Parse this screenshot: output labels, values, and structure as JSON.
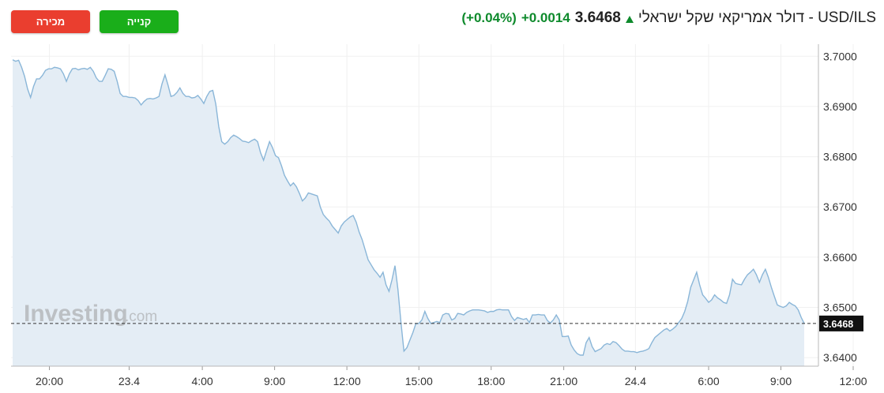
{
  "header": {
    "title": "USD/ILS - דולר אמריקאי שקל ישראלי",
    "price": "3.6468",
    "change": "+0.0014",
    "change_pct": "(+0.04%)",
    "direction_icon": "arrow-up-icon",
    "up_color": "#0e8a2c"
  },
  "buttons": {
    "buy_label": "קנייה",
    "sell_label": "מכירה",
    "buy_color": "#1aae1a",
    "sell_color": "#ea3e2f"
  },
  "watermark": {
    "text": "Investing",
    "suffix": ".com"
  },
  "chart_data": {
    "type": "area",
    "line_color": "#8ab6d8",
    "fill_color": "#e4edf5",
    "ylim": [
      3.6383,
      3.7024
    ],
    "y_ticks": [
      "3.7000",
      "3.6900",
      "3.6800",
      "3.6700",
      "3.6600",
      "3.6500",
      "3.6400"
    ],
    "y_tick_values": [
      3.7,
      3.69,
      3.68,
      3.67,
      3.66,
      3.65,
      3.64
    ],
    "x_ticks": [
      "20:00",
      "23.4",
      "4:00",
      "9:00",
      "12:00",
      "15:00",
      "18:00",
      "21:00",
      "24.4",
      "6:00",
      "9:00",
      "12:00"
    ],
    "x_tick_index": [
      12.3,
      39,
      63.5,
      87.7,
      111.9,
      136,
      160.2,
      184.5,
      208.5,
      233,
      257.2,
      281.4
    ],
    "current_value": 3.6468,
    "current_label": "3.6468",
    "grid": true,
    "values": [
      3.6993,
      3.699,
      3.6992,
      3.6978,
      3.696,
      3.6935,
      3.6918,
      3.694,
      3.6955,
      3.6955,
      3.6962,
      3.6972,
      3.6975,
      3.6975,
      3.6978,
      3.6977,
      3.6975,
      3.6965,
      3.695,
      3.6965,
      3.6975,
      3.6976,
      3.6973,
      3.6975,
      3.6976,
      3.6974,
      3.6978,
      3.697,
      3.6957,
      3.695,
      3.695,
      3.6962,
      3.6975,
      3.6974,
      3.697,
      3.695,
      3.6926,
      3.692,
      3.692,
      3.6918,
      3.6918,
      3.6917,
      3.6912,
      3.6903,
      3.691,
      3.6915,
      3.6916,
      3.6915,
      3.6917,
      3.692,
      3.6945,
      3.6963,
      3.6943,
      3.692,
      3.6922,
      3.6928,
      3.6937,
      3.6926,
      3.692,
      3.692,
      3.6917,
      3.6918,
      3.6922,
      3.6915,
      3.6906,
      3.692,
      3.693,
      3.6932,
      3.6905,
      3.686,
      3.683,
      3.6825,
      3.683,
      3.6838,
      3.6843,
      3.684,
      3.6836,
      3.6831,
      3.683,
      3.6828,
      3.6832,
      3.6835,
      3.683,
      3.6808,
      3.6793,
      3.6812,
      3.683,
      3.6818,
      3.6802,
      3.6798,
      3.6782,
      3.6763,
      3.6752,
      3.6742,
      3.6748,
      3.674,
      3.6727,
      3.6712,
      3.6718,
      3.6728,
      3.6726,
      3.6724,
      3.6722,
      3.67,
      3.6685,
      3.6678,
      3.6672,
      3.6662,
      3.6655,
      3.6648,
      3.6662,
      3.667,
      3.6675,
      3.668,
      3.6683,
      3.667,
      3.665,
      3.6635,
      3.6615,
      3.6595,
      3.6585,
      3.6575,
      3.6568,
      3.656,
      3.657,
      3.6545,
      3.6532,
      3.6555,
      3.6583,
      3.6535,
      3.647,
      3.6413,
      3.642,
      3.6435,
      3.645,
      3.6468,
      3.6468,
      3.6475,
      3.6492,
      3.6478,
      3.6468,
      3.647,
      3.6472,
      3.647,
      3.6485,
      3.6488,
      3.6487,
      3.6475,
      3.6478,
      3.6488,
      3.6487,
      3.6485,
      3.649,
      3.6493,
      3.6495,
      3.6495,
      3.6495,
      3.6494,
      3.6493,
      3.649,
      3.6492,
      3.6492,
      3.6495,
      3.6496,
      3.6495,
      3.6495,
      3.6495,
      3.6482,
      3.6474,
      3.648,
      3.6478,
      3.6476,
      3.6478,
      3.647,
      3.6485,
      3.6485,
      3.6486,
      3.6485,
      3.6485,
      3.6474,
      3.6469,
      3.6475,
      3.6485,
      3.6475,
      3.6442,
      3.6442,
      3.6443,
      3.6425,
      3.6415,
      3.6408,
      3.6405,
      3.6405,
      3.643,
      3.644,
      3.6422,
      3.6412,
      3.6415,
      3.6418,
      3.6425,
      3.6428,
      3.6426,
      3.6432,
      3.643,
      3.6424,
      3.6417,
      3.6413,
      3.6413,
      3.6412,
      3.6412,
      3.641,
      3.6412,
      3.6413,
      3.6415,
      3.6418,
      3.643,
      3.644,
      3.6445,
      3.645,
      3.6455,
      3.6458,
      3.6453,
      3.6457,
      3.6462,
      3.647,
      3.6478,
      3.6492,
      3.6512,
      3.654,
      3.6555,
      3.657,
      3.6545,
      3.6525,
      3.6518,
      3.651,
      3.6515,
      3.6525,
      3.6519,
      3.6515,
      3.651,
      3.6508,
      3.6525,
      3.6556,
      3.6548,
      3.6546,
      3.6545,
      3.6556,
      3.6565,
      3.657,
      3.6576,
      3.6565,
      3.655,
      3.6565,
      3.6576,
      3.656,
      3.654,
      3.6522,
      3.6505,
      3.6502,
      3.65,
      3.6503,
      3.651,
      3.6506,
      3.6503,
      3.6495,
      3.648,
      3.6468
    ]
  }
}
